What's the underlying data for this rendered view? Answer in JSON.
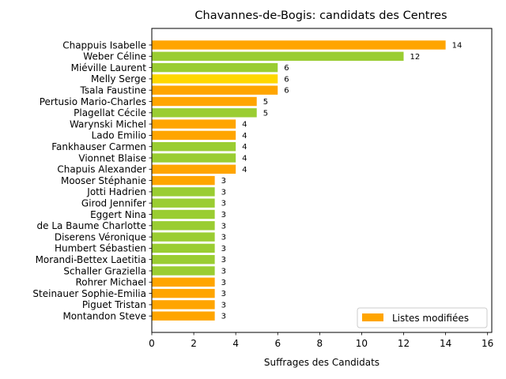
{
  "chart_data": {
    "type": "bar",
    "orientation": "horizontal",
    "title": "Chavannes-de-Bogis: candidats des Centres",
    "xlabel": "Suffrages des Candidats",
    "ylabel": "",
    "xlim": [
      0,
      16.2
    ],
    "xticks": [
      0,
      2,
      4,
      6,
      8,
      10,
      12,
      14,
      16
    ],
    "grid": false,
    "legend": {
      "placement": "lower-right",
      "entries": [
        {
          "label": "Listes modifiées",
          "color": "#FFA500"
        }
      ]
    },
    "colors": {
      "orange": "#FFA500",
      "green": "#9ACD32",
      "gold": "#FFD700"
    },
    "categories": [
      "Chappuis Isabelle",
      "Weber Céline",
      "Miéville Laurent",
      "Melly Serge",
      "Tsala Faustine",
      "Pertusio Mario-Charles",
      "Plagellat Cécile",
      "Warynski Michel",
      "Lado Emilio",
      "Fankhauser Carmen",
      "Vionnet Blaise",
      "Chapuis Alexander",
      "Mooser Stéphanie",
      "Jotti Hadrien",
      "Girod Jennifer",
      "Eggert Nina",
      "de La Baume Charlotte",
      "Diserens Véronique",
      "Humbert Sébastien",
      "Morandi-Bettex Laetitia",
      "Schaller Graziella",
      "Rohrer Michael",
      "Steinauer Sophie-Emilia",
      "Piguet Tristan",
      "Montandon Steve"
    ],
    "values": [
      14,
      12,
      6,
      6,
      6,
      5,
      5,
      4,
      4,
      4,
      4,
      4,
      3,
      3,
      3,
      3,
      3,
      3,
      3,
      3,
      3,
      3,
      3,
      3,
      3
    ],
    "bar_colors": [
      "#FFA500",
      "#9ACD32",
      "#9ACD32",
      "#FFD700",
      "#FFA500",
      "#FFA500",
      "#9ACD32",
      "#FFA500",
      "#FFA500",
      "#9ACD32",
      "#9ACD32",
      "#FFA500",
      "#FFA500",
      "#9ACD32",
      "#9ACD32",
      "#9ACD32",
      "#9ACD32",
      "#9ACD32",
      "#9ACD32",
      "#9ACD32",
      "#9ACD32",
      "#FFA500",
      "#FFA500",
      "#FFA500",
      "#FFA500"
    ]
  }
}
